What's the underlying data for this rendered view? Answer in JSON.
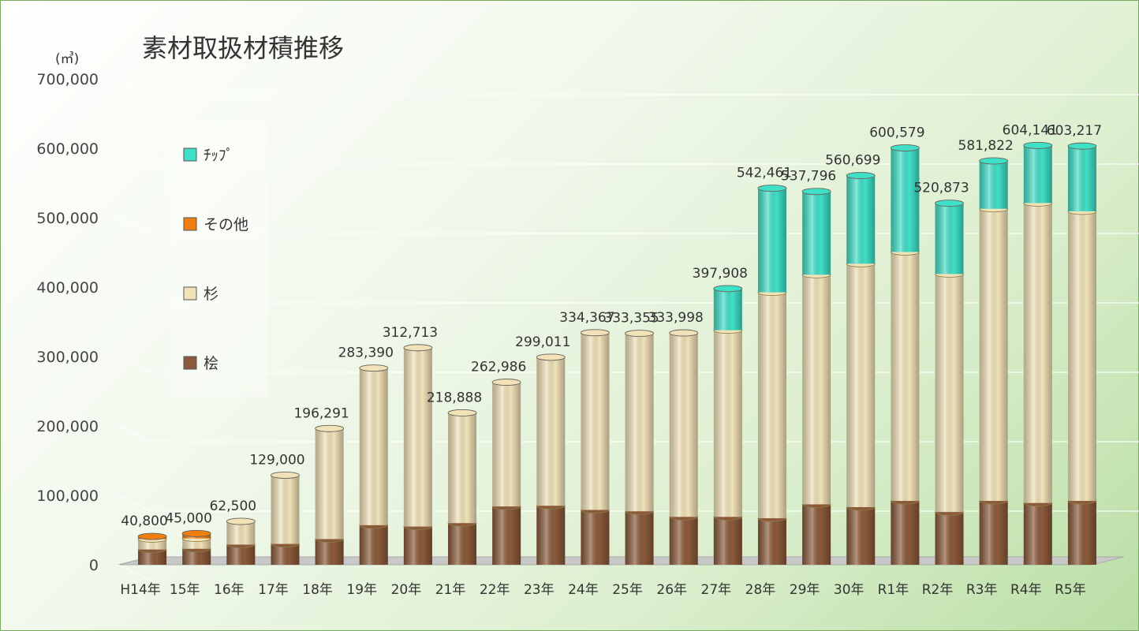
{
  "chart_data": {
    "type": "bar",
    "title": "素材取扱材積推移",
    "unit": "(㎥)",
    "stacked": true,
    "categories": [
      "H14年",
      "15年",
      "16年",
      "17年",
      "18年",
      "19年",
      "20年",
      "21年",
      "22年",
      "23年",
      "24年",
      "25年",
      "26年",
      "27年",
      "28年",
      "29年",
      "30年",
      "R1年",
      "R2年",
      "R3年",
      "R4年",
      "R5年"
    ],
    "totals": [
      40800,
      45000,
      62500,
      129000,
      196291,
      283390,
      312713,
      218888,
      262986,
      299011,
      334367,
      333355,
      333998,
      397908,
      542461,
      537796,
      560699,
      600579,
      520873,
      581822,
      604141,
      603217
    ],
    "total_labels": [
      "40,800",
      "45,000",
      "62,500",
      "129,000",
      "196,291",
      "283,390",
      "312,713",
      "218,888",
      "262,986",
      "299,011",
      "334,367",
      "333,355",
      "333,998",
      "397,908",
      "542,461",
      "537,796",
      "560,699",
      "600,579",
      "520,873",
      "581,822",
      "604,141",
      "603,217"
    ],
    "series": [
      {
        "name": "桧",
        "color": "#8b5a3a",
        "values": [
          22000,
          23000,
          29000,
          30000,
          37000,
          57000,
          55000,
          60000,
          84000,
          85000,
          79000,
          77000,
          69000,
          69000,
          67000,
          87000,
          83000,
          92000,
          76000,
          92000,
          89000,
          92000
        ]
      },
      {
        "name": "杉",
        "color": "#f1e2b8",
        "values": [
          15000,
          15000,
          33500,
          99000,
          159291,
          226390,
          257713,
          158888,
          178986,
          214011,
          255367,
          256355,
          264998,
          268908,
          325461,
          330796,
          350699,
          358579,
          342873,
          420822,
          432141,
          417217
        ]
      },
      {
        "name": "その他",
        "color": "#f07f10",
        "values": [
          3800,
          7000,
          0,
          0,
          0,
          0,
          0,
          0,
          0,
          0,
          0,
          0,
          0,
          0,
          0,
          0,
          0,
          0,
          0,
          0,
          0,
          0
        ]
      },
      {
        "name": "ﾁｯﾌﾟ",
        "color": "#40e0c8",
        "values": [
          0,
          0,
          0,
          0,
          0,
          0,
          0,
          0,
          0,
          0,
          0,
          0,
          0,
          60000,
          150000,
          120000,
          127000,
          150000,
          102000,
          69000,
          83000,
          94000
        ]
      }
    ],
    "legend_order": [
      "ﾁｯﾌﾟ",
      "その他",
      "杉",
      "桧"
    ],
    "legend_position": "left",
    "ylim": [
      0,
      700000
    ],
    "yticks": [
      0,
      100000,
      200000,
      300000,
      400000,
      500000,
      600000,
      700000
    ],
    "ytick_labels": [
      "0",
      "100,000",
      "200,000",
      "300,000",
      "400,000",
      "500,000",
      "600,000",
      "700,000"
    ],
    "grid": true
  }
}
